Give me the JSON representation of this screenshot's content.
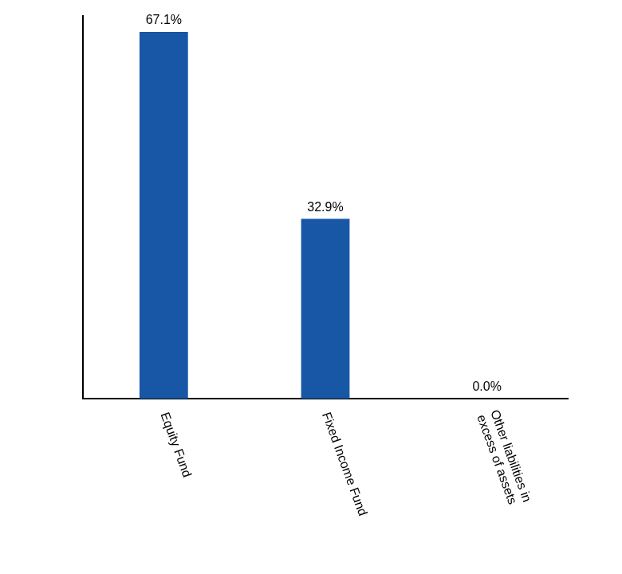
{
  "chart_data": {
    "type": "bar",
    "categories": [
      "Equity Fund",
      "Fixed Income Fund",
      "Other liabilities in excess of assets"
    ],
    "values": [
      67.1,
      32.9,
      0.0
    ],
    "value_labels": [
      "67.1%",
      "32.9%",
      "0.0%"
    ],
    "data_labels": true,
    "color": "#1757a6",
    "ylim": [
      0,
      70
    ],
    "grid": false,
    "tick_labels": "x"
  }
}
